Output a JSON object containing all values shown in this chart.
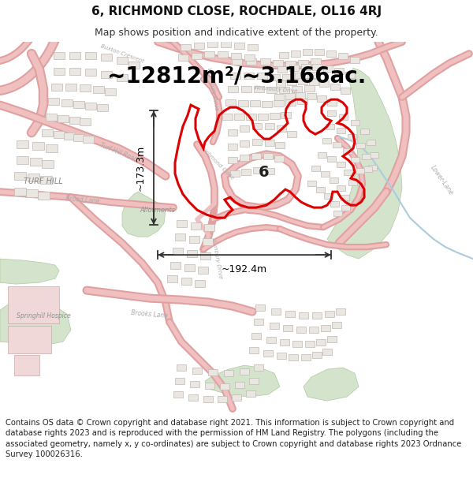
{
  "title_line1": "6, RICHMOND CLOSE, ROCHDALE, OL16 4RJ",
  "title_line2": "Map shows position and indicative extent of the property.",
  "area_text": "~12812m²/~3.166ac.",
  "dim_width": "~192.4m",
  "dim_height": "~173.3m",
  "label_number": "6",
  "footer_text": "Contains OS data © Crown copyright and database right 2021. This information is subject to Crown copyright and database rights 2023 and is reproduced with the permission of HM Land Registry. The polygons (including the associated geometry, namely x, y co-ordinates) are subject to Crown copyright and database rights 2023 Ordnance Survey 100026316.",
  "bg_color": "#ffffff",
  "map_bg": "#ffffff",
  "road_fill": "#f5d5d5",
  "road_edge": "#e8b0b0",
  "building_fill": "#e8e4e0",
  "building_edge": "#c8c0bc",
  "green_fill": "#d4e4cc",
  "green_edge": "#b0c8a0",
  "red_poly": "#dd0000",
  "dim_color": "#333333",
  "label_color": "#222222",
  "text_color": "#606060",
  "title_fontsize": 11,
  "subtitle_fontsize": 9,
  "area_fontsize": 20,
  "dim_fontsize": 9,
  "label_fontsize": 14,
  "footer_fontsize": 7.2,
  "map_title_ratio": 0.085,
  "map_body_ratio": 0.76,
  "map_footer_ratio": 0.155
}
